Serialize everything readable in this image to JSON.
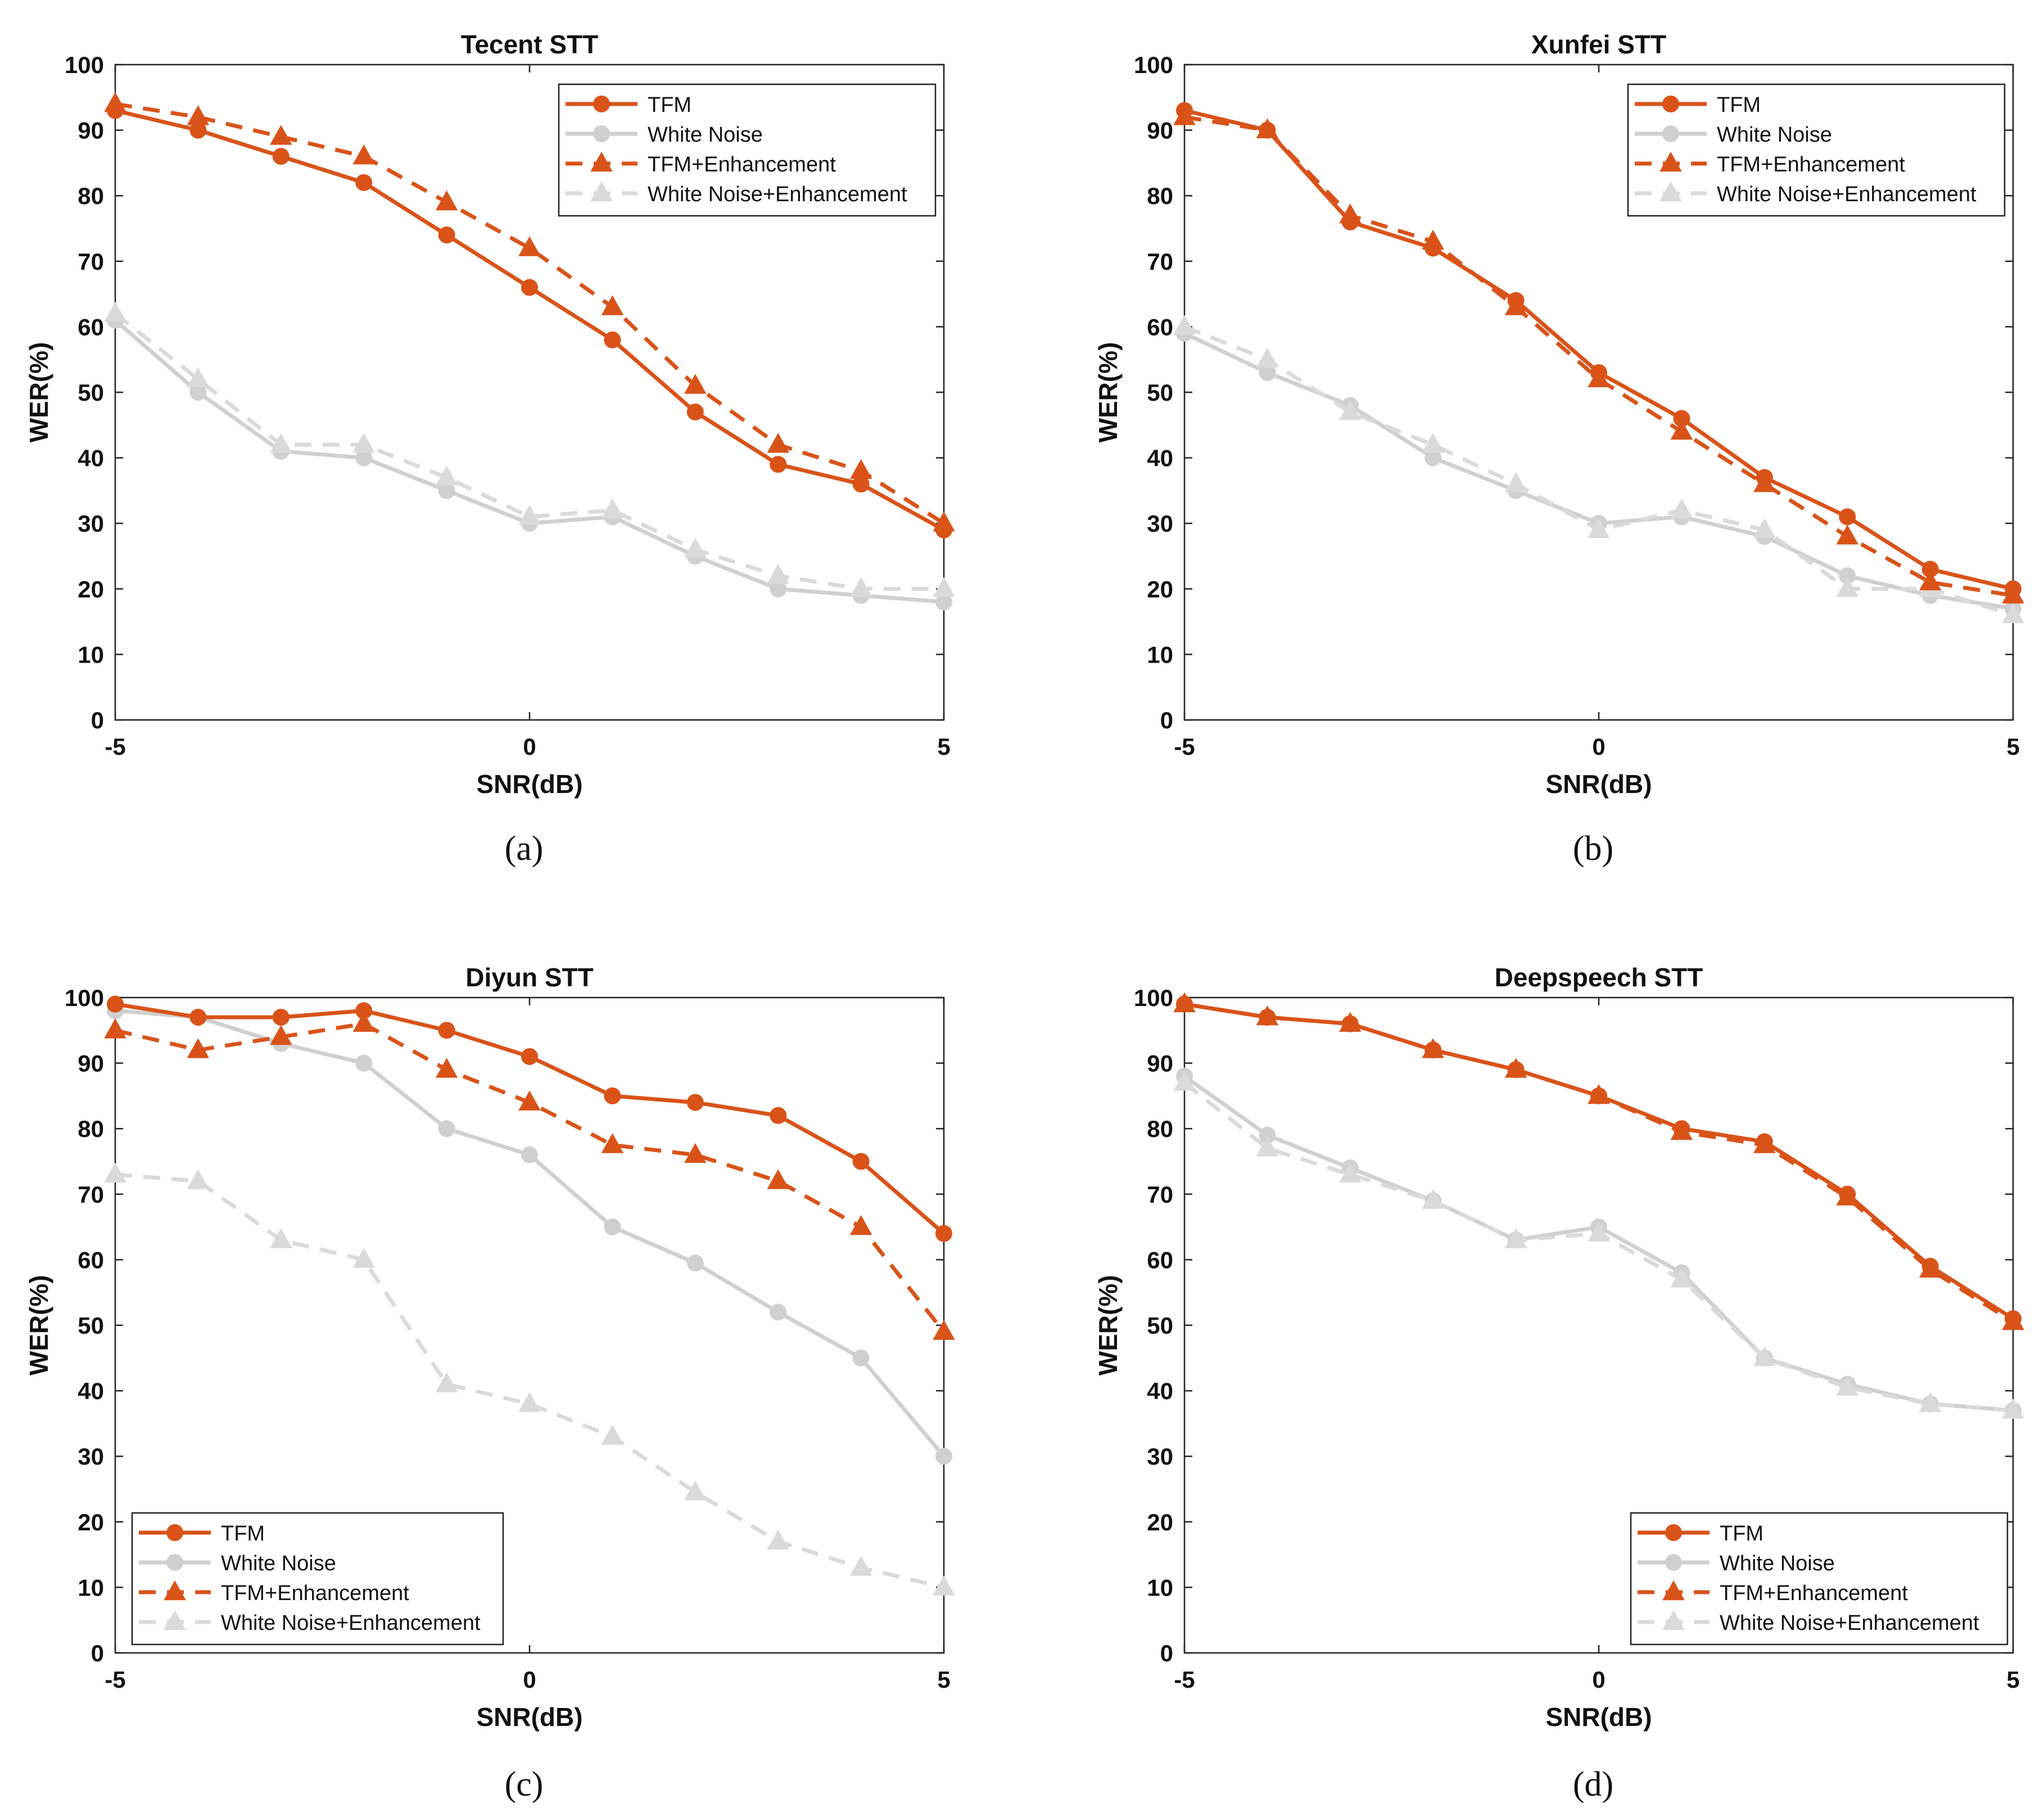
{
  "colors": {
    "tfm": "#D95319",
    "white_noise": "#D0D0D0",
    "white_noise_enh": "#DADADA",
    "axis": "#222222",
    "text": "#111111"
  },
  "chart_data": [
    {
      "type": "line",
      "title": "Tecent STT",
      "caption": "(a)",
      "xlabel": "SNR(dB)",
      "ylabel": "WER(%)",
      "xlim": [
        -5,
        5
      ],
      "ylim": [
        0,
        100
      ],
      "xticks": [
        -5,
        0,
        5
      ],
      "yticks": [
        0,
        10,
        20,
        30,
        40,
        50,
        60,
        70,
        80,
        90,
        100
      ],
      "legend_position": "top-right",
      "x": [
        -5,
        -4,
        -3,
        -2,
        -1,
        0,
        1,
        2,
        3,
        4,
        5
      ],
      "series": [
        {
          "name": "TFM",
          "values": [
            93,
            90,
            86,
            82,
            74,
            66,
            58,
            47,
            39,
            36,
            29
          ]
        },
        {
          "name": "White Noise",
          "values": [
            61,
            50,
            41,
            40,
            35,
            30,
            31,
            25,
            20,
            19,
            18
          ]
        },
        {
          "name": "TFM+Enhancement",
          "values": [
            94,
            92,
            89,
            86,
            79,
            72,
            63,
            51,
            42,
            38,
            30
          ]
        },
        {
          "name": "White Noise+Enhancement",
          "values": [
            62,
            52,
            42,
            42,
            37,
            31,
            32,
            26,
            22,
            20,
            20
          ]
        }
      ]
    },
    {
      "type": "line",
      "title": "Xunfei STT",
      "caption": "(b)",
      "xlabel": "SNR(dB)",
      "ylabel": "WER(%)",
      "xlim": [
        -5,
        5
      ],
      "ylim": [
        0,
        100
      ],
      "xticks": [
        -5,
        0,
        5
      ],
      "yticks": [
        0,
        10,
        20,
        30,
        40,
        50,
        60,
        70,
        80,
        90,
        100
      ],
      "legend_position": "top-right",
      "x": [
        -5,
        -4,
        -3,
        -2,
        -1,
        0,
        1,
        2,
        3,
        4,
        5
      ],
      "series": [
        {
          "name": "TFM",
          "values": [
            93,
            90,
            76,
            72,
            64,
            53,
            46,
            37,
            31,
            23,
            20
          ]
        },
        {
          "name": "White Noise",
          "values": [
            59,
            53,
            48,
            40,
            35,
            30,
            31,
            28,
            22,
            19,
            17
          ]
        },
        {
          "name": "TFM+Enhancement",
          "values": [
            92,
            90,
            77,
            73,
            63,
            52,
            44,
            36,
            28,
            21,
            19
          ]
        },
        {
          "name": "White Noise+Enhancement",
          "values": [
            60,
            55,
            47,
            42,
            36,
            29,
            32,
            29,
            20,
            20,
            16
          ]
        }
      ]
    },
    {
      "type": "line",
      "title": "Diyun STT",
      "caption": "(c)",
      "xlabel": "SNR(dB)",
      "ylabel": "WER(%)",
      "xlim": [
        -5,
        5
      ],
      "ylim": [
        0,
        100
      ],
      "xticks": [
        -5,
        0,
        5
      ],
      "yticks": [
        0,
        10,
        20,
        30,
        40,
        50,
        60,
        70,
        80,
        90,
        100
      ],
      "legend_position": "bottom-left",
      "x": [
        -5,
        -4,
        -3,
        -2,
        -1,
        0,
        1,
        2,
        3,
        4,
        5
      ],
      "series": [
        {
          "name": "TFM",
          "values": [
            99,
            97,
            97,
            98,
            95,
            91,
            85,
            84,
            82,
            75,
            64
          ]
        },
        {
          "name": "White Noise",
          "values": [
            98,
            97,
            93,
            90,
            80,
            76,
            65,
            59.5,
            52,
            45,
            30
          ]
        },
        {
          "name": "TFM+Enhancement",
          "values": [
            95,
            92,
            94,
            96,
            89,
            84,
            77.5,
            76,
            72,
            65,
            49
          ]
        },
        {
          "name": "White Noise+Enhancement",
          "values": [
            73,
            72,
            63,
            60,
            41,
            38,
            33,
            24.5,
            17,
            13,
            10
          ]
        }
      ]
    },
    {
      "type": "line",
      "title": "Deepspeech STT",
      "caption": "(d)",
      "xlabel": "SNR(dB)",
      "ylabel": "WER(%)",
      "xlim": [
        -5,
        5
      ],
      "ylim": [
        0,
        100
      ],
      "xticks": [
        -5,
        0,
        5
      ],
      "yticks": [
        0,
        10,
        20,
        30,
        40,
        50,
        60,
        70,
        80,
        90,
        100
      ],
      "legend_position": "bottom-right",
      "x": [
        -5,
        -4,
        -3,
        -2,
        -1,
        0,
        1,
        2,
        3,
        4,
        5
      ],
      "series": [
        {
          "name": "TFM",
          "values": [
            99,
            97,
            96,
            92,
            89,
            85,
            80,
            78,
            70,
            59,
            51
          ]
        },
        {
          "name": "White Noise",
          "values": [
            88,
            79,
            74,
            69,
            63,
            65,
            58,
            45,
            41,
            38,
            37
          ]
        },
        {
          "name": "TFM+Enhancement",
          "values": [
            99,
            97,
            96,
            92,
            89,
            85,
            79.5,
            77.5,
            69.5,
            58.5,
            50.5
          ]
        },
        {
          "name": "White Noise+Enhancement",
          "values": [
            87,
            77,
            73,
            69,
            63,
            64,
            57,
            45,
            40.5,
            38,
            37
          ]
        }
      ]
    }
  ]
}
